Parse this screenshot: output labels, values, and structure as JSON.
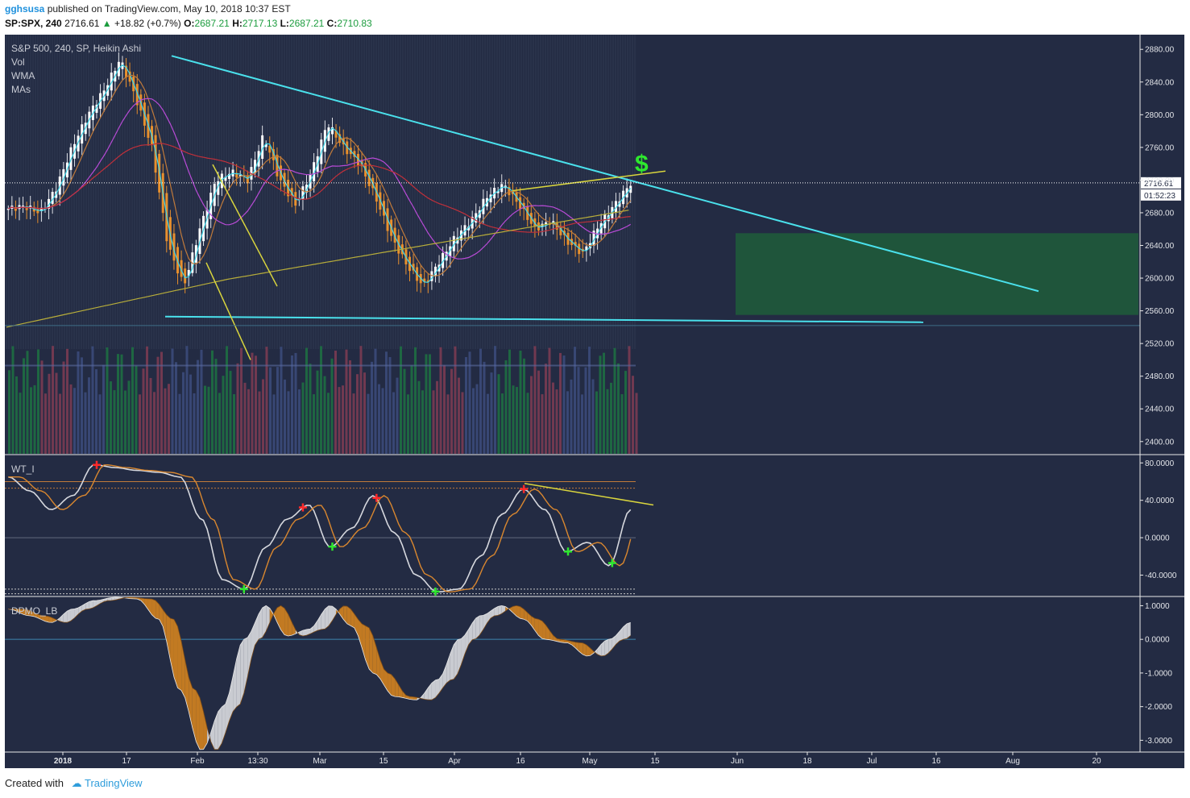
{
  "header": {
    "user": "gghsusa",
    "published": "published on TradingView.com, May 10, 2018 10:37 EST",
    "symbol": "SP:SPX, 240",
    "last": "2716.61",
    "change": "+18.82 (+0.7%)",
    "o_label": "O:",
    "o_value": "2687.21",
    "h_label": "H:",
    "h_value": "2717.13",
    "l_label": "L:",
    "l_value": "2687.21",
    "c_label": "C:",
    "c_value": "2710.83"
  },
  "footer": {
    "created_with": "Created with",
    "brand": "TradingView"
  },
  "colors": {
    "background": "#232b43",
    "up": "#ffffff",
    "down": "#e8902d",
    "trendline": "#4ae1ec",
    "yellow": "#d9d53d",
    "target_zone": "#1f5a3b",
    "dollar": "#2ee82e"
  },
  "chart_data": [
    {
      "type": "candlestick",
      "title": "S&P 500, 240, SP, Heikin Ashi",
      "legend": [
        "Vol",
        "WMA",
        "MAs"
      ],
      "y_ticks": [
        2880,
        2840,
        2800,
        2760,
        2720,
        2680,
        2640,
        2600,
        2560,
        2520,
        2480,
        2440,
        2400
      ],
      "ylim": [
        2385,
        2895
      ],
      "x_ticks": [
        "2018",
        "17",
        "Feb",
        "13:30",
        "Mar",
        "15",
        "Apr",
        "16",
        "May",
        "15",
        "Jun",
        "18",
        "Jul",
        "16",
        "Aug",
        "20"
      ],
      "last_price": "2716.61",
      "countdown": "01:52:23",
      "annotation": "$",
      "path": [
        2685,
        2688,
        2680,
        2710,
        2760,
        2800,
        2830,
        2868,
        2820,
        2760,
        2640,
        2590,
        2660,
        2720,
        2730,
        2720,
        2775,
        2720,
        2690,
        2730,
        2790,
        2760,
        2740,
        2700,
        2650,
        2615,
        2590,
        2620,
        2650,
        2670,
        2700,
        2715,
        2690,
        2660,
        2670,
        2645,
        2630,
        2665,
        2690,
        2716
      ],
      "target_zone": [
        2555,
        2655
      ]
    },
    {
      "type": "line",
      "title": "WT_I",
      "y_ticks": [
        "80.0000",
        "40.0000",
        "0.0000",
        "-40.0000"
      ],
      "ylim": [
        -62,
        88
      ],
      "path": [
        65,
        50,
        30,
        45,
        78,
        75,
        72,
        70,
        65,
        20,
        -45,
        -55,
        -10,
        20,
        35,
        -10,
        10,
        45,
        5,
        -40,
        -58,
        -55,
        -20,
        25,
        52,
        30,
        -15,
        -5,
        -30,
        30
      ]
    },
    {
      "type": "area",
      "title": "DPMO_LB",
      "y_ticks": [
        "1.0000",
        "0.0000",
        "-1.0000",
        "-2.0000",
        "-3.0000"
      ],
      "ylim": [
        -3.35,
        1.25
      ],
      "path": [
        0.9,
        0.7,
        0.5,
        0.9,
        1.15,
        1.25,
        1.2,
        0.6,
        -1.5,
        -3.3,
        -2.0,
        0.0,
        1.0,
        0.1,
        0.3,
        1.0,
        0.4,
        -1.0,
        -1.7,
        -1.8,
        -1.2,
        0.0,
        0.7,
        1.0,
        0.6,
        0.0,
        -0.1,
        -0.5,
        0.0,
        0.5
      ]
    }
  ]
}
